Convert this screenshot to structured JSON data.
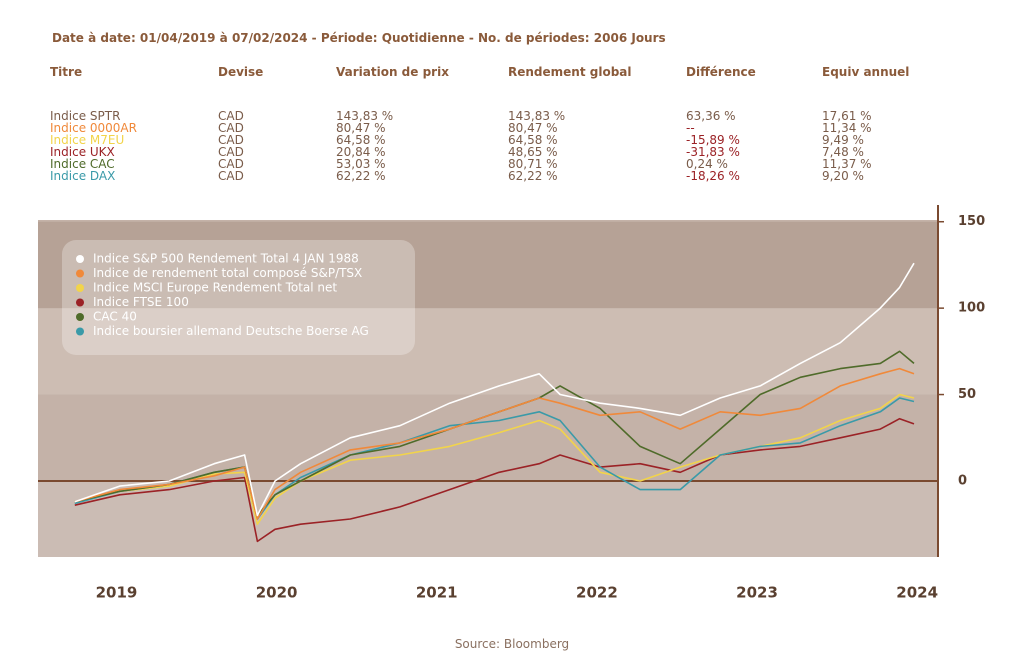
{
  "header": "Date à date: 01/04/2019 à 07/02/2024 - Période: Quotidienne - No. de périodes: 2006 Jours",
  "table": {
    "columns": [
      "Titre",
      "Devise",
      "Variation de prix",
      "Rendement global",
      "Différence",
      "Equiv annuel"
    ],
    "rows": [
      [
        "Indice SPTR",
        "CAD",
        "143,83 %",
        "143,83 %",
        "63,36 %",
        "17,61 %"
      ],
      [
        "Indice 0000AR",
        "CAD",
        "80,47 %",
        "80,47 %",
        "--",
        "11,34 %"
      ],
      [
        "Indice M7EU",
        "CAD",
        "64,58 %",
        "64,58 %",
        "-15,89 %",
        "9,49 %"
      ],
      [
        "Indice UKX",
        "CAD",
        "20,84 %",
        "48,65 %",
        "-31,83 %",
        "7,48 %"
      ],
      [
        "Indice CAC",
        "CAD",
        "53,03 %",
        "80,71 %",
        "0,24 %",
        "11,37 %"
      ],
      [
        "Indice DAX",
        "CAD",
        "62,22 %",
        "62,22 %",
        "-18,26 %",
        "9,20 %"
      ]
    ]
  },
  "chart_data": {
    "type": "line",
    "x": [
      2018.74,
      2019.02,
      2019.33,
      2019.61,
      2019.8,
      2019.88,
      2019.99,
      2020.15,
      2020.46,
      2020.77,
      2021.08,
      2021.39,
      2021.64,
      2021.77,
      2022.02,
      2022.27,
      2022.52,
      2022.77,
      2023.02,
      2023.27,
      2023.52,
      2023.77,
      2023.89,
      2023.98
    ],
    "xlim": [
      2018.51,
      2024.13
    ],
    "xticks": [
      2019,
      2020,
      2021,
      2022,
      2023,
      2024
    ],
    "ylim": [
      -44,
      151
    ],
    "yticks": [
      0,
      50,
      100,
      150
    ],
    "series": [
      {
        "name": "Indice S&P 500 Rendement Total 4 JAN 1988",
        "color": "#ffffff",
        "values": [
          -12,
          -3,
          0,
          10,
          15,
          -20,
          0,
          10,
          25,
          32,
          45,
          55,
          62,
          50,
          45,
          42,
          38,
          48,
          55,
          68,
          80,
          100,
          112,
          126
        ]
      },
      {
        "name": "Indice de rendement total composé S&P/TSX",
        "color": "#f0893a",
        "values": [
          -12,
          -5,
          -2,
          3,
          8,
          -22,
          -5,
          5,
          18,
          22,
          30,
          40,
          48,
          45,
          38,
          40,
          30,
          40,
          38,
          42,
          55,
          62,
          65,
          62
        ]
      },
      {
        "name": "Indice MSCI Europe Rendement Total net",
        "color": "#f2d44a",
        "values": [
          -12,
          -6,
          -3,
          4,
          5,
          -25,
          -10,
          0,
          12,
          15,
          20,
          28,
          35,
          30,
          5,
          0,
          8,
          15,
          20,
          25,
          35,
          42,
          50,
          48
        ]
      },
      {
        "name": "Indice FTSE 100",
        "color": "#9b2226",
        "values": [
          -14,
          -8,
          -5,
          0,
          2,
          -35,
          -28,
          -25,
          -22,
          -15,
          -5,
          5,
          10,
          15,
          8,
          10,
          5,
          15,
          18,
          20,
          25,
          30,
          36,
          33
        ]
      },
      {
        "name": "CAC 40",
        "color": "#4f6b2a",
        "values": [
          -12,
          -6,
          -2,
          5,
          8,
          -20,
          -8,
          0,
          15,
          20,
          30,
          40,
          48,
          55,
          42,
          20,
          10,
          30,
          50,
          60,
          65,
          68,
          75,
          68
        ]
      },
      {
        "name": "Indice boursier allemand Deutsche Boerse AG",
        "color": "#3a9aa8",
        "values": [
          -13,
          -6,
          -2,
          5,
          8,
          -22,
          -8,
          2,
          15,
          22,
          32,
          35,
          40,
          35,
          8,
          -5,
          -5,
          15,
          20,
          22,
          32,
          40,
          48,
          46
        ]
      }
    ]
  },
  "source": "Source: Bloomberg"
}
